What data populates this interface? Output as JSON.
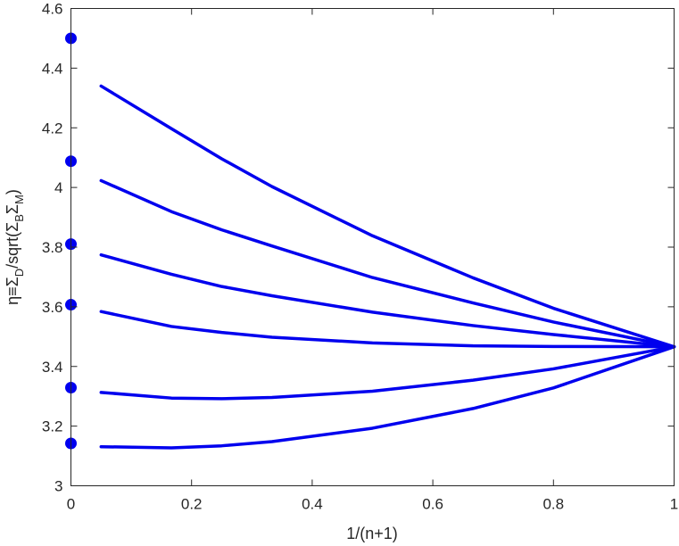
{
  "chart_data": {
    "type": "line",
    "xlabel": "1/(n+1)",
    "ylabel": {
      "text": "η≡Σ_D/sqrt(Σ_B Σ_M)",
      "parts": [
        {
          "t": "η≡Σ",
          "sub": false
        },
        {
          "t": "D",
          "sub": true
        },
        {
          "t": "/sqrt(Σ",
          "sub": false
        },
        {
          "t": "B",
          "sub": true
        },
        {
          "t": "Σ",
          "sub": false
        },
        {
          "t": "M",
          "sub": true
        },
        {
          "t": ")",
          "sub": false
        }
      ]
    },
    "xlim": [
      0,
      1
    ],
    "ylim": [
      3,
      4.6
    ],
    "xticks": [
      0,
      0.2,
      0.4,
      0.6,
      0.8,
      1
    ],
    "xtick_labels": [
      "0",
      "0.2",
      "0.4",
      "0.6",
      "0.8",
      "1"
    ],
    "yticks": [
      3,
      3.2,
      3.4,
      3.6,
      3.8,
      4,
      4.2,
      4.4,
      4.6
    ],
    "ytick_labels": [
      "3",
      "3.2",
      "3.4",
      "3.6",
      "3.8",
      "4",
      "4.2",
      "4.4",
      "4.6"
    ],
    "grid": false,
    "color": "#0000ee",
    "x": [
      0.05,
      0.1667,
      0.25,
      0.3333,
      0.5,
      0.6667,
      0.8,
      1.0
    ],
    "series": [
      {
        "values": [
          4.34,
          4.197,
          4.096,
          4.003,
          3.838,
          3.697,
          3.595,
          3.466
        ]
      },
      {
        "values": [
          4.023,
          3.919,
          3.858,
          3.804,
          3.698,
          3.613,
          3.549,
          3.466
        ]
      },
      {
        "values": [
          3.774,
          3.709,
          3.668,
          3.637,
          3.582,
          3.537,
          3.507,
          3.466
        ]
      },
      {
        "values": [
          3.584,
          3.534,
          3.514,
          3.498,
          3.479,
          3.469,
          3.467,
          3.466
        ]
      },
      {
        "values": [
          3.313,
          3.294,
          3.292,
          3.296,
          3.317,
          3.354,
          3.392,
          3.466
        ]
      },
      {
        "values": [
          3.131,
          3.127,
          3.134,
          3.148,
          3.193,
          3.259,
          3.328,
          3.466
        ]
      }
    ],
    "points": {
      "x": [
        0,
        0,
        0,
        0,
        0,
        0
      ],
      "y": [
        4.5,
        4.088,
        3.81,
        3.607,
        3.329,
        3.142
      ]
    }
  }
}
